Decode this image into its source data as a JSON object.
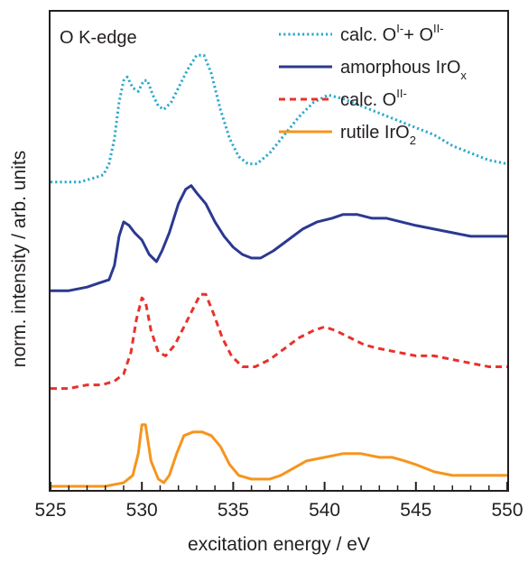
{
  "chart_data": {
    "type": "line",
    "panel_label": "O K-edge",
    "xlabel": "excitation energy / eV",
    "ylabel": "norm. intensity / arb. units",
    "xlim": [
      525,
      550
    ],
    "x_ticks": [
      "525",
      "530",
      "535",
      "540",
      "545",
      "550"
    ],
    "y_ticks": [],
    "grid": false,
    "legend_position": "top-right",
    "series": [
      {
        "name": "calc. Oˡ⁻+ Oᴵᴵ⁻",
        "legend": {
          "base": "calc. O",
          "sup1": "I-",
          "mid": "+ O",
          "sup2": "II-"
        },
        "color": "#2aa8cc",
        "style": "dotted",
        "points": [
          [
            525,
            0.85
          ],
          [
            525.8,
            0.85
          ],
          [
            526.6,
            0.85
          ],
          [
            527.3,
            0.86
          ],
          [
            527.9,
            0.87
          ],
          [
            528.2,
            0.9
          ],
          [
            528.5,
            0.97
          ],
          [
            528.75,
            1.07
          ],
          [
            529,
            1.13
          ],
          [
            529.2,
            1.14
          ],
          [
            529.5,
            1.11
          ],
          [
            529.8,
            1.1
          ],
          [
            530.1,
            1.13
          ],
          [
            530.3,
            1.13
          ],
          [
            530.6,
            1.09
          ],
          [
            530.9,
            1.06
          ],
          [
            531.2,
            1.05
          ],
          [
            531.6,
            1.07
          ],
          [
            532,
            1.11
          ],
          [
            532.5,
            1.16
          ],
          [
            533,
            1.2
          ],
          [
            533.4,
            1.2
          ],
          [
            533.8,
            1.15
          ],
          [
            534.3,
            1.05
          ],
          [
            534.8,
            0.97
          ],
          [
            535.3,
            0.92
          ],
          [
            535.8,
            0.9
          ],
          [
            536.3,
            0.9
          ],
          [
            537,
            0.93
          ],
          [
            537.8,
            0.98
          ],
          [
            538.6,
            1.03
          ],
          [
            539.4,
            1.07
          ],
          [
            540.2,
            1.09
          ],
          [
            541,
            1.08
          ],
          [
            542,
            1.06
          ],
          [
            543,
            1.04
          ],
          [
            544,
            1.02
          ],
          [
            545,
            1.0
          ],
          [
            546,
            0.98
          ],
          [
            547,
            0.95
          ],
          [
            548,
            0.93
          ],
          [
            549,
            0.91
          ],
          [
            550,
            0.9
          ]
        ]
      },
      {
        "name": "amorphous IrOₓ",
        "legend": {
          "base": "amorphous IrO",
          "sub": "x"
        },
        "color": "#2b3990",
        "style": "solid",
        "points": [
          [
            525,
            0.55
          ],
          [
            526,
            0.55
          ],
          [
            527,
            0.56
          ],
          [
            527.6,
            0.57
          ],
          [
            528.2,
            0.58
          ],
          [
            528.5,
            0.62
          ],
          [
            528.75,
            0.7
          ],
          [
            529,
            0.74
          ],
          [
            529.3,
            0.73
          ],
          [
            529.6,
            0.71
          ],
          [
            530,
            0.69
          ],
          [
            530.4,
            0.65
          ],
          [
            530.8,
            0.63
          ],
          [
            531.1,
            0.66
          ],
          [
            531.5,
            0.71
          ],
          [
            532,
            0.79
          ],
          [
            532.4,
            0.83
          ],
          [
            532.7,
            0.84
          ],
          [
            533,
            0.82
          ],
          [
            533.5,
            0.79
          ],
          [
            534,
            0.74
          ],
          [
            534.5,
            0.7
          ],
          [
            535,
            0.67
          ],
          [
            535.5,
            0.65
          ],
          [
            536,
            0.64
          ],
          [
            536.5,
            0.64
          ],
          [
            537.2,
            0.66
          ],
          [
            538,
            0.69
          ],
          [
            538.8,
            0.72
          ],
          [
            539.6,
            0.74
          ],
          [
            540.4,
            0.75
          ],
          [
            541,
            0.76
          ],
          [
            541.8,
            0.76
          ],
          [
            542.6,
            0.75
          ],
          [
            543.4,
            0.75
          ],
          [
            544.2,
            0.74
          ],
          [
            545,
            0.73
          ],
          [
            546,
            0.72
          ],
          [
            547,
            0.71
          ],
          [
            548,
            0.7
          ],
          [
            549,
            0.7
          ],
          [
            550,
            0.7
          ]
        ]
      },
      {
        "name": "calc. Oᴵᴵ⁻",
        "legend": {
          "base": "calc. O",
          "sup1": "II-"
        },
        "color": "#e8322d",
        "style": "dashed",
        "points": [
          [
            525,
            0.28
          ],
          [
            526,
            0.28
          ],
          [
            527,
            0.29
          ],
          [
            527.8,
            0.29
          ],
          [
            528.5,
            0.3
          ],
          [
            529,
            0.32
          ],
          [
            529.4,
            0.38
          ],
          [
            529.7,
            0.47
          ],
          [
            530,
            0.53
          ],
          [
            530.2,
            0.52
          ],
          [
            530.5,
            0.44
          ],
          [
            530.9,
            0.38
          ],
          [
            531.3,
            0.37
          ],
          [
            531.8,
            0.4
          ],
          [
            532.3,
            0.45
          ],
          [
            532.8,
            0.5
          ],
          [
            533.2,
            0.54
          ],
          [
            533.5,
            0.54
          ],
          [
            533.9,
            0.49
          ],
          [
            534.4,
            0.42
          ],
          [
            534.9,
            0.37
          ],
          [
            535.5,
            0.34
          ],
          [
            536.2,
            0.34
          ],
          [
            537,
            0.36
          ],
          [
            537.8,
            0.39
          ],
          [
            538.6,
            0.42
          ],
          [
            539.4,
            0.44
          ],
          [
            540,
            0.45
          ],
          [
            540.6,
            0.44
          ],
          [
            541.4,
            0.42
          ],
          [
            542.2,
            0.4
          ],
          [
            543,
            0.39
          ],
          [
            544,
            0.38
          ],
          [
            545,
            0.37
          ],
          [
            546,
            0.37
          ],
          [
            547,
            0.36
          ],
          [
            548,
            0.35
          ],
          [
            549,
            0.34
          ],
          [
            550,
            0.34
          ]
        ]
      },
      {
        "name": "rutile IrO₂",
        "legend": {
          "base": "rutile IrO",
          "sub": "2"
        },
        "color": "#f7941d",
        "style": "solid",
        "points": [
          [
            525,
            0.01
          ],
          [
            526,
            0.01
          ],
          [
            527,
            0.01
          ],
          [
            528,
            0.01
          ],
          [
            529,
            0.02
          ],
          [
            529.5,
            0.04
          ],
          [
            529.8,
            0.1
          ],
          [
            530,
            0.18
          ],
          [
            530.2,
            0.18
          ],
          [
            530.5,
            0.08
          ],
          [
            530.9,
            0.03
          ],
          [
            531.2,
            0.02
          ],
          [
            531.5,
            0.04
          ],
          [
            531.9,
            0.1
          ],
          [
            532.3,
            0.15
          ],
          [
            532.8,
            0.16
          ],
          [
            533.3,
            0.16
          ],
          [
            533.8,
            0.15
          ],
          [
            534.3,
            0.12
          ],
          [
            534.8,
            0.07
          ],
          [
            535.3,
            0.04
          ],
          [
            536,
            0.03
          ],
          [
            537,
            0.03
          ],
          [
            537.6,
            0.04
          ],
          [
            538.3,
            0.06
          ],
          [
            539,
            0.08
          ],
          [
            540,
            0.09
          ],
          [
            541,
            0.1
          ],
          [
            542,
            0.1
          ],
          [
            543,
            0.09
          ],
          [
            543.7,
            0.09
          ],
          [
            544.4,
            0.08
          ],
          [
            545,
            0.07
          ],
          [
            546,
            0.05
          ],
          [
            547,
            0.04
          ],
          [
            548,
            0.04
          ],
          [
            549,
            0.04
          ],
          [
            550,
            0.04
          ]
        ]
      }
    ]
  }
}
